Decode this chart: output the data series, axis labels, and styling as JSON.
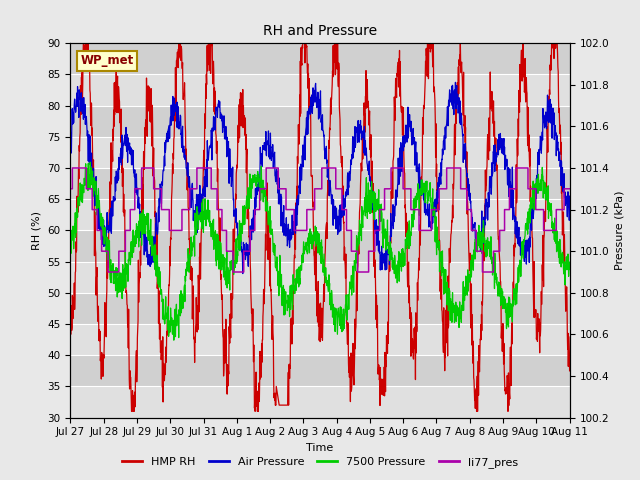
{
  "title": "RH and Pressure",
  "xlabel": "Time",
  "ylabel_left": "RH (%)",
  "ylabel_right": "Pressure (kPa)",
  "ylim_left": [
    30,
    90
  ],
  "ylim_right": [
    100.2,
    102.0
  ],
  "yticks_left": [
    30,
    35,
    40,
    45,
    50,
    55,
    60,
    65,
    70,
    75,
    80,
    85,
    90
  ],
  "yticks_right": [
    100.2,
    100.4,
    100.6,
    100.8,
    101.0,
    101.2,
    101.4,
    101.6,
    101.8,
    102.0
  ],
  "xtick_labels": [
    "Jul 27",
    "Jul 28",
    "Jul 29",
    "Jul 30",
    "Jul 31",
    "Aug 1",
    "Aug 2",
    "Aug 3",
    "Aug 4",
    "Aug 5",
    "Aug 6",
    "Aug 7",
    "Aug 8",
    "Aug 9",
    "Aug 10",
    "Aug 11"
  ],
  "n_days": 16,
  "bg_color": "#e8e8e8",
  "plot_bg_light": "#e0e0e0",
  "plot_bg_dark": "#c8c8c8",
  "legend_entries": [
    "HMP RH",
    "Air Pressure",
    "7500 Pressure",
    "li77_pres"
  ],
  "legend_colors": [
    "#cc0000",
    "#0000cc",
    "#00cc00",
    "#aa00aa"
  ],
  "watermark_text": "WP_met",
  "watermark_fg": "#880000",
  "watermark_bg": "#ffffcc",
  "watermark_border": "#aa8800",
  "line_colors": {
    "hmp_rh": "#cc0000",
    "air_pressure": "#0000cc",
    "p7500": "#00cc00",
    "li77": "#aa00aa"
  },
  "title_fontsize": 10,
  "axis_label_fontsize": 8,
  "tick_fontsize": 7.5,
  "legend_fontsize": 8
}
